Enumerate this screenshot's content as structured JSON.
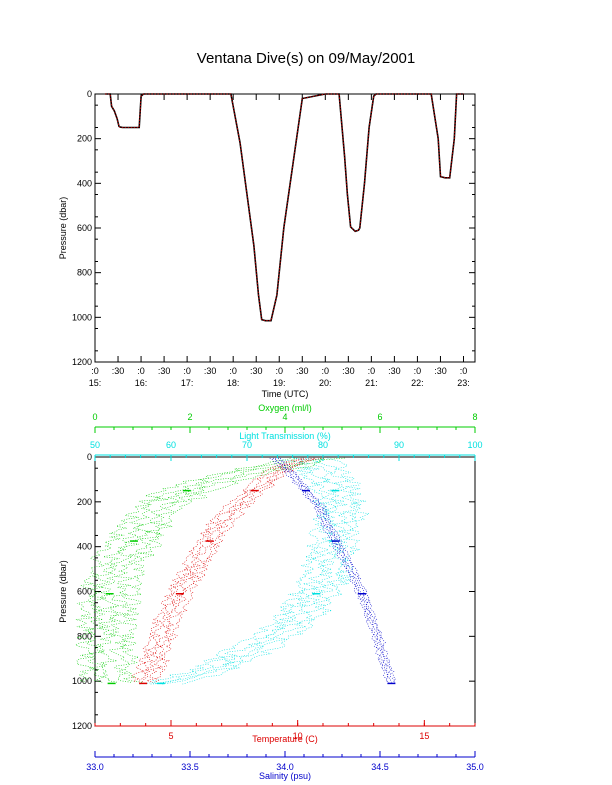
{
  "title": "Ventana Dive(s) on 09/May/2001",
  "colors": {
    "black": "#000000",
    "red": "#dd0000",
    "green": "#00cc00",
    "cyan": "#00e0e0",
    "blue": "#0000cc"
  },
  "chart_data": [
    {
      "type": "line",
      "title": "Ventana Dive(s) on 09/May/2001",
      "xlabel": "Time (UTC)",
      "ylabel": "Pressure (dbar)",
      "xlim": [
        15.0,
        23.25
      ],
      "ylim": [
        1200,
        0
      ],
      "yticks": [
        0,
        200,
        400,
        600,
        800,
        1000,
        1200
      ],
      "xticks": [
        {
          "x": 15.0,
          "top": ":0",
          "bottom": "15:"
        },
        {
          "x": 15.5,
          "top": ":30",
          "bottom": ""
        },
        {
          "x": 16.0,
          "top": ":0",
          "bottom": "16:"
        },
        {
          "x": 16.5,
          "top": ":30",
          "bottom": ""
        },
        {
          "x": 17.0,
          "top": ":0",
          "bottom": "17:"
        },
        {
          "x": 17.5,
          "top": ":30",
          "bottom": ""
        },
        {
          "x": 18.0,
          "top": ":0",
          "bottom": "18:"
        },
        {
          "x": 18.5,
          "top": ":30",
          "bottom": ""
        },
        {
          "x": 19.0,
          "top": ":0",
          "bottom": "19:"
        },
        {
          "x": 19.5,
          "top": ":30",
          "bottom": ""
        },
        {
          "x": 20.0,
          "top": ":0",
          "bottom": "20:"
        },
        {
          "x": 20.5,
          "top": ":30",
          "bottom": ""
        },
        {
          "x": 21.0,
          "top": ":0",
          "bottom": "21:"
        },
        {
          "x": 21.5,
          "top": ":30",
          "bottom": ""
        },
        {
          "x": 22.0,
          "top": ":0",
          "bottom": "22:"
        },
        {
          "x": 22.5,
          "top": ":30",
          "bottom": ""
        },
        {
          "x": 23.0,
          "top": ":0",
          "bottom": "23:"
        }
      ],
      "series": [
        {
          "color": "#dd0000",
          "x": [
            15.22,
            15.33,
            15.36,
            15.42,
            15.48,
            15.52,
            15.55,
            15.6,
            15.75,
            15.96,
            16.0,
            16.05,
            16.5,
            16.9,
            17.5,
            17.95,
            18.15,
            18.3,
            18.45,
            18.55,
            18.62,
            18.7,
            18.82,
            18.95,
            19.1,
            19.5,
            20.0,
            20.3,
            20.42,
            20.48,
            20.55,
            20.65,
            20.72,
            20.75,
            20.85,
            20.95,
            21.05,
            21.1,
            21.5,
            22.0,
            22.05,
            22.15,
            22.25,
            22.3,
            22.45,
            22.5,
            22.6,
            22.7,
            22.8,
            22.85,
            23.0
          ],
          "y": [
            0,
            0,
            55,
            75,
            110,
            145,
            148,
            150,
            150,
            150,
            10,
            0,
            0,
            0,
            0,
            0,
            220,
            450,
            680,
            900,
            1010,
            1015,
            1015,
            900,
            600,
            20,
            0,
            0,
            280,
            450,
            595,
            615,
            610,
            600,
            400,
            150,
            10,
            0,
            0,
            0,
            0,
            0,
            0,
            0,
            200,
            370,
            375,
            375,
            200,
            0,
            0
          ]
        }
      ]
    },
    {
      "type": "scatter",
      "ylabel": "Pressure (dbar)",
      "ylim": [
        1200,
        0
      ],
      "yticks": [
        0,
        200,
        400,
        600,
        800,
        1000,
        1200
      ],
      "axes": [
        {
          "label": "Oxygen (ml/l)",
          "color": "#00cc00",
          "position": "top",
          "range": [
            0,
            8
          ],
          "ticks": [
            0,
            2,
            4,
            6,
            8
          ]
        },
        {
          "label": "Light Transmission (%)",
          "color": "#00e0e0",
          "position": "top",
          "range": [
            50,
            100
          ],
          "ticks": [
            50,
            60,
            70,
            80,
            90,
            100
          ]
        },
        {
          "label": "Temperature (C)",
          "color": "#dd0000",
          "position": "bottom",
          "range": [
            2,
            17
          ],
          "ticks": [
            5,
            10,
            15
          ]
        },
        {
          "label": "Salinity (psu)",
          "color": "#0000cc",
          "position": "bottom",
          "range": [
            33.0,
            35.0
          ],
          "ticks": [
            "33.0",
            "33.5",
            "34.0",
            "34.5",
            "35.0"
          ]
        }
      ],
      "series": [
        {
          "name": "Oxygen (ml/l)",
          "axis": 0,
          "points": [
            [
              4.6,
              5
            ],
            [
              4.2,
              30
            ],
            [
              3.4,
              60
            ],
            [
              2.8,
              90
            ],
            [
              2.2,
              130
            ],
            [
              1.8,
              160
            ],
            [
              1.5,
              210
            ],
            [
              1.2,
              270
            ],
            [
              1.0,
              330
            ],
            [
              0.8,
              380
            ],
            [
              0.6,
              440
            ],
            [
              0.45,
              500
            ],
            [
              0.35,
              560
            ],
            [
              0.3,
              620
            ],
            [
              0.28,
              700
            ],
            [
              0.25,
              800
            ],
            [
              0.28,
              900
            ],
            [
              0.35,
              1010
            ]
          ],
          "spread": 0.4
        },
        {
          "name": "Light Transmission (%)",
          "axis": 1,
          "points": [
            [
              77,
              5
            ],
            [
              79.5,
              30
            ],
            [
              81,
              100
            ],
            [
              82,
              180
            ],
            [
              82.5,
              260
            ],
            [
              81.5,
              350
            ],
            [
              81,
              450
            ],
            [
              80,
              550
            ],
            [
              78.5,
              650
            ],
            [
              76,
              750
            ],
            [
              71,
              850
            ],
            [
              66,
              940
            ],
            [
              61,
              1000
            ],
            [
              57.5,
              1015
            ]
          ],
          "spread": 2.2
        },
        {
          "name": "Temperature (C)",
          "axis": 2,
          "points": [
            [
              10.5,
              5
            ],
            [
              9.5,
              40
            ],
            [
              8.8,
              100
            ],
            [
              8.2,
              160
            ],
            [
              7.5,
              230
            ],
            [
              6.8,
              320
            ],
            [
              6.3,
              420
            ],
            [
              5.8,
              520
            ],
            [
              5.3,
              620
            ],
            [
              4.9,
              720
            ],
            [
              4.6,
              820
            ],
            [
              4.3,
              920
            ],
            [
              3.9,
              1010
            ]
          ],
          "spread": 0.35
        },
        {
          "name": "Salinity (psu)",
          "axis": 3,
          "points": [
            [
              33.95,
              5
            ],
            [
              34.02,
              60
            ],
            [
              34.1,
              140
            ],
            [
              34.18,
              220
            ],
            [
              34.22,
              300
            ],
            [
              34.27,
              380
            ],
            [
              34.32,
              460
            ],
            [
              34.38,
              560
            ],
            [
              34.42,
              640
            ],
            [
              34.46,
              740
            ],
            [
              34.5,
              840
            ],
            [
              34.53,
              930
            ],
            [
              34.56,
              1010
            ]
          ],
          "spread": 0.02
        }
      ]
    }
  ]
}
